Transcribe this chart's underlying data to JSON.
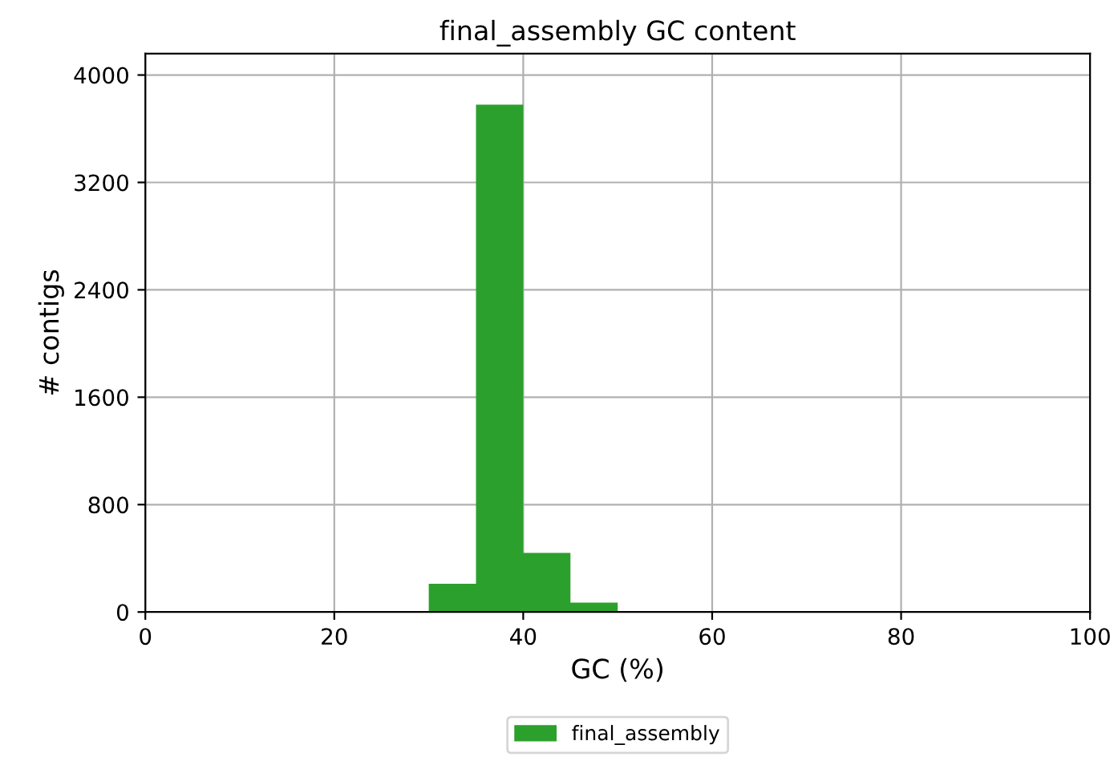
{
  "chart_data": {
    "type": "histogram",
    "title": "final_assembly GC content",
    "xlabel": "GC (%)",
    "ylabel": "# contigs",
    "bins": [
      30,
      35,
      40,
      45,
      50
    ],
    "series": [
      {
        "name": "final_assembly",
        "color": "#2ca02c",
        "values": [
          210,
          3780,
          440,
          70
        ]
      }
    ],
    "xlim": [
      0,
      100
    ],
    "xticks": [
      0,
      20,
      40,
      60,
      80,
      100
    ],
    "ylim": [
      0,
      4160
    ],
    "yticks": [
      0,
      800,
      1600,
      2400,
      3200,
      4000
    ],
    "grid": true,
    "legend": "bottom"
  }
}
